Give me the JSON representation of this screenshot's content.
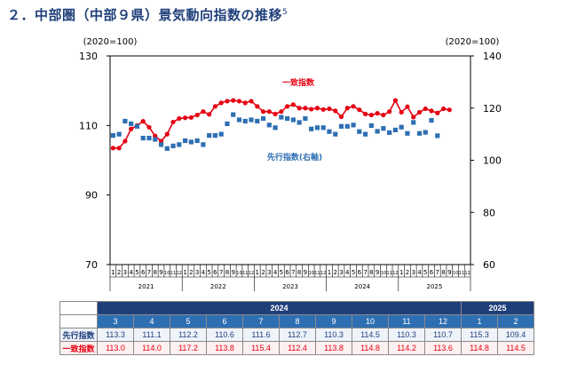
{
  "header": {
    "title": "２．中部圏（中部９県）景気動向指数の推移",
    "footnote_mark": "5"
  },
  "chart_data": {
    "type": "line",
    "left_unit": "(2020=100)",
    "right_unit": "(2020=100)",
    "left_axis": {
      "min": 70,
      "max": 130,
      "ticks": [
        "70",
        "90",
        "110",
        "130"
      ]
    },
    "right_axis": {
      "min": 60,
      "max": 140,
      "ticks": [
        "60",
        "80",
        "100",
        "120",
        "140"
      ]
    },
    "month_ticks": [
      "1",
      "2",
      "3",
      "4",
      "5",
      "6",
      "7",
      "8",
      "9",
      "10",
      "11",
      "12",
      "1",
      "2",
      "3",
      "4",
      "5",
      "6",
      "7",
      "8",
      "9",
      "10",
      "11",
      "12",
      "1",
      "2",
      "3",
      "4",
      "5",
      "6",
      "7",
      "8",
      "9",
      "10",
      "11",
      "12",
      "1",
      "2",
      "3",
      "4",
      "5",
      "6",
      "7",
      "8",
      "9",
      "10",
      "11",
      "12",
      "1",
      "2",
      "3",
      "4",
      "5",
      "6",
      "7",
      "8",
      "9",
      "10",
      "11",
      "12"
    ],
    "year_labels": [
      "2021",
      "2022",
      "2023",
      "2024",
      "2025"
    ],
    "series": [
      {
        "name": "一致指数",
        "color": "#e60012",
        "marker": "circle",
        "axis": "left",
        "values": [
          103.5,
          103.5,
          105.5,
          109.0,
          110.0,
          111.2,
          109.5,
          107.0,
          105.5,
          107.5,
          111.0,
          112.0,
          112.2,
          112.3,
          113.0,
          114.0,
          113.2,
          115.5,
          116.5,
          117.0,
          117.2,
          117.0,
          116.5,
          117.0,
          115.5,
          114.0,
          114.0,
          113.3,
          114.0,
          115.5,
          116.0,
          115.0,
          115.0,
          114.7,
          115.0,
          114.6,
          114.8,
          114.2,
          112.5,
          115.0,
          115.5,
          114.5,
          113.3,
          113.0,
          113.5,
          113.0,
          114.0,
          117.2,
          113.8,
          115.4,
          112.4,
          113.8,
          114.8,
          114.2,
          113.6,
          114.8,
          114.5
        ]
      },
      {
        "name": "先行指数(右軸)",
        "color": "#2e6fb3",
        "marker": "square",
        "axis": "right",
        "values": [
          109.5,
          110.0,
          115.0,
          114.0,
          113.0,
          108.5,
          108.5,
          108.0,
          106.0,
          104.5,
          105.5,
          106.0,
          107.5,
          107.0,
          107.5,
          106.0,
          109.5,
          109.5,
          110.0,
          114.0,
          117.5,
          115.5,
          115.0,
          115.5,
          115.0,
          116.0,
          113.5,
          112.5,
          116.5,
          116.0,
          115.5,
          114.5,
          116.0,
          112.0,
          112.5,
          112.5,
          111.0,
          110.0,
          113.0,
          113.0,
          113.5,
          111.0,
          110.0,
          113.3,
          111.1,
          112.2,
          110.6,
          111.6,
          112.7,
          110.3,
          114.5,
          110.3,
          110.7,
          115.3,
          109.4
        ]
      }
    ],
    "annotations": [
      "一致指数",
      "先行指数(右軸)"
    ]
  },
  "table": {
    "year_headers": [
      "2024",
      "2025"
    ],
    "months": [
      "3",
      "4",
      "5",
      "6",
      "7",
      "8",
      "9",
      "10",
      "11",
      "12",
      "1",
      "2"
    ],
    "rows": [
      {
        "label": "先行指数",
        "values": [
          "113.3",
          "111.1",
          "112.2",
          "110.6",
          "111.6",
          "112.7",
          "110.3",
          "114.5",
          "110.3",
          "110.7",
          "115.3",
          "109.4"
        ]
      },
      {
        "label": "一致指数",
        "values": [
          "113.0",
          "114.0",
          "117.2",
          "113.8",
          "115.4",
          "112.4",
          "113.8",
          "114.8",
          "114.2",
          "113.6",
          "114.8",
          "114.5"
        ]
      }
    ]
  }
}
